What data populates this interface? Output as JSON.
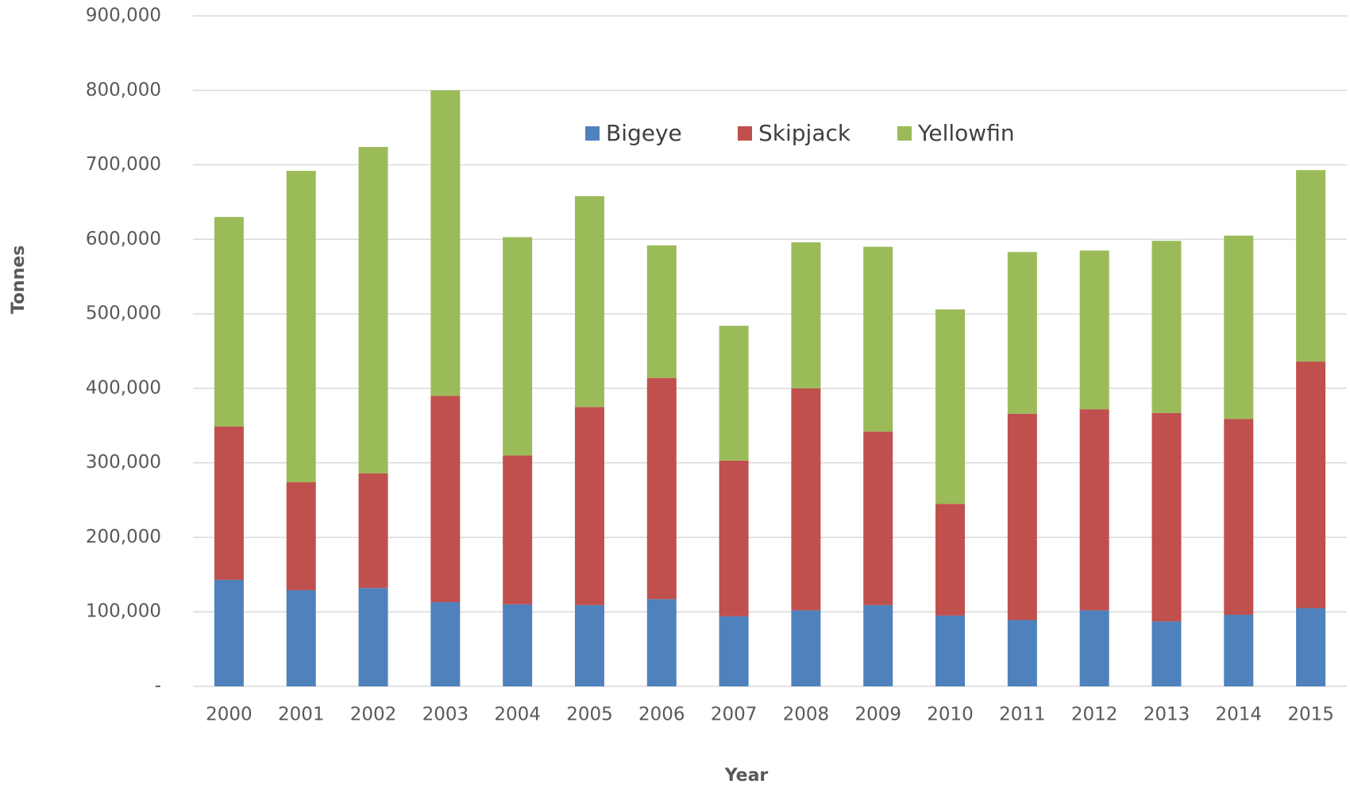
{
  "chart_data": {
    "type": "stacked_bar",
    "x_label": "Year",
    "y_label": "Tonnes",
    "categories": [
      "2000",
      "2001",
      "2002",
      "2003",
      "2004",
      "2005",
      "2006",
      "2007",
      "2008",
      "2009",
      "2010",
      "2011",
      "2012",
      "2013",
      "2014",
      "2015"
    ],
    "series": [
      {
        "name": "Bigeye",
        "color": "#4f81bd",
        "values": [
          143000,
          129000,
          132000,
          113000,
          110000,
          109000,
          117000,
          94000,
          102000,
          109000,
          95000,
          89000,
          102000,
          87000,
          96000,
          105000
        ]
      },
      {
        "name": "Skipjack",
        "color": "#c0504d",
        "values": [
          206000,
          145000,
          154000,
          277000,
          200000,
          266000,
          297000,
          209000,
          298000,
          233000,
          150000,
          277000,
          270000,
          280000,
          263000,
          331000
        ]
      },
      {
        "name": "Yellowfin",
        "color": "#9bbb59",
        "values": [
          281000,
          418000,
          438000,
          410000,
          293000,
          283000,
          178000,
          181000,
          196000,
          248000,
          261000,
          217000,
          213000,
          231000,
          246000,
          257000
        ]
      }
    ],
    "ylim": [
      0,
      900000
    ],
    "yticks": [
      {
        "value": 0,
        "label": "-"
      },
      {
        "value": 100000,
        "label": "100,000"
      },
      {
        "value": 200000,
        "label": "200,000"
      },
      {
        "value": 300000,
        "label": "300,000"
      },
      {
        "value": 400000,
        "label": "400,000"
      },
      {
        "value": 500000,
        "label": "500,000"
      },
      {
        "value": 600000,
        "label": "600,000"
      },
      {
        "value": 700000,
        "label": "700,000"
      },
      {
        "value": 800000,
        "label": "800,000"
      },
      {
        "value": 900000,
        "label": "900,000"
      }
    ],
    "grid": true,
    "legend": "top"
  }
}
